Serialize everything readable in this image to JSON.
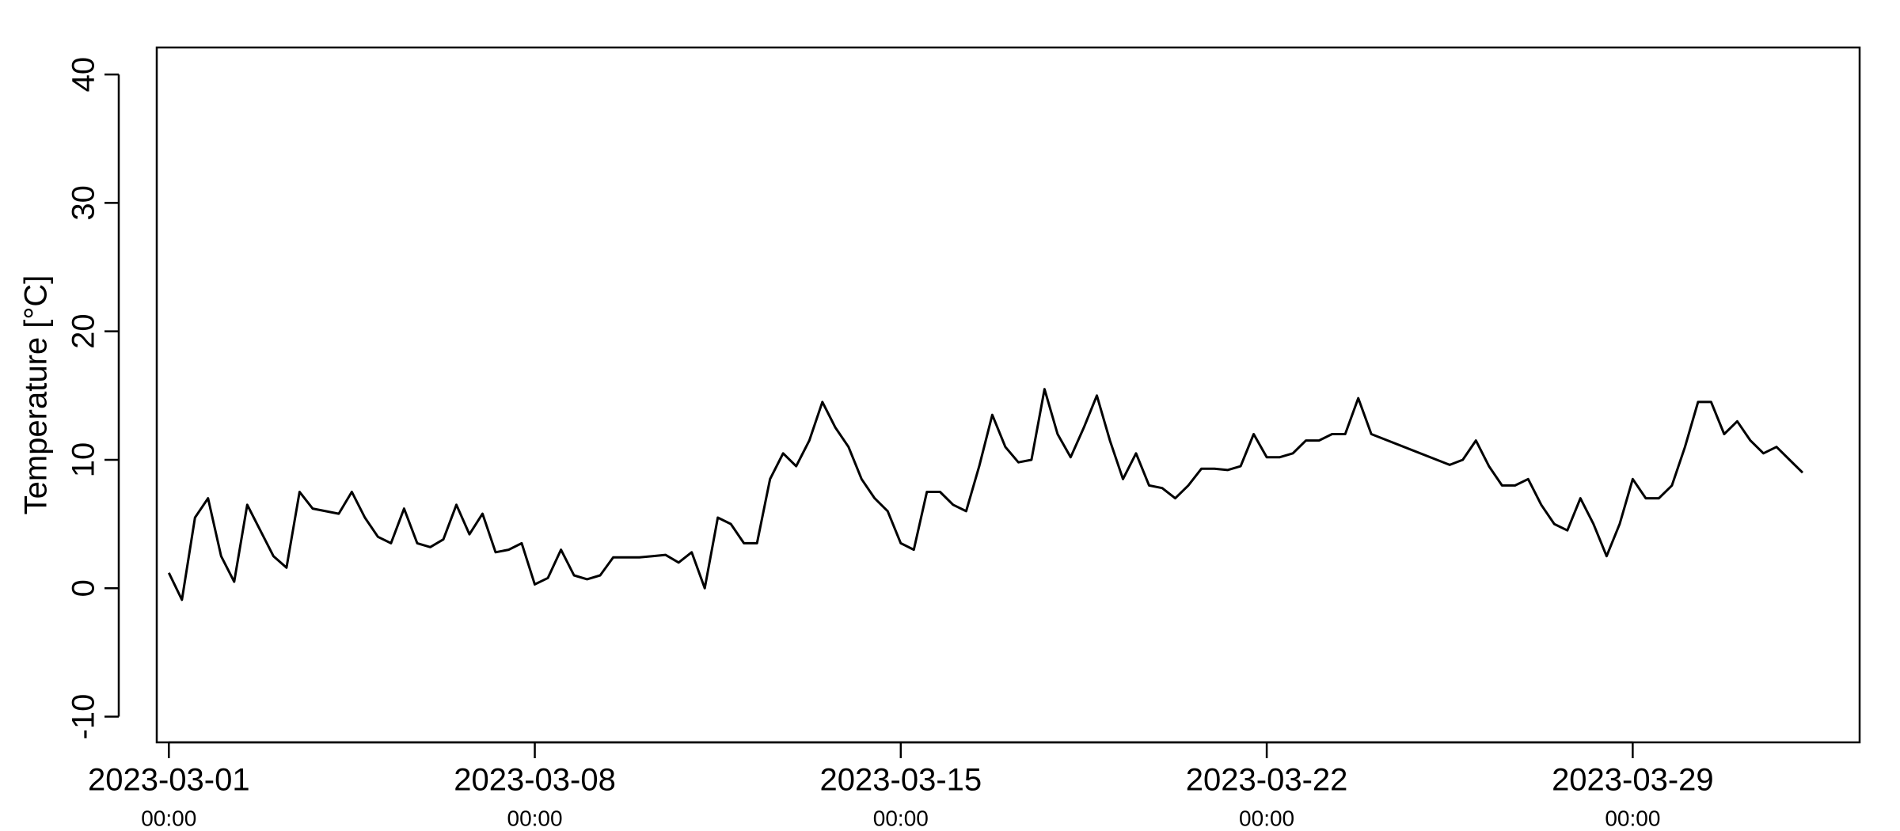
{
  "chart_data": {
    "type": "line",
    "y_label": "Temperature [°C]",
    "xlim": [
      "2023-02-28 18:27",
      "2023-04-02 08:10"
    ],
    "ylim": [
      -12,
      42.1
    ],
    "yticks": [
      -10,
      0,
      10,
      20,
      30,
      40
    ],
    "xticks": [
      {
        "value": "2023-03-01 00:00",
        "label": "2023-03-01",
        "time": "00:00"
      },
      {
        "value": "2023-03-08 00:00",
        "label": "2023-03-08",
        "time": "00:00"
      },
      {
        "value": "2023-03-15 00:00",
        "label": "2023-03-15",
        "time": "00:00"
      },
      {
        "value": "2023-03-22 00:00",
        "label": "2023-03-22",
        "time": "00:00"
      },
      {
        "value": "2023-03-29 00:00",
        "label": "2023-03-29",
        "time": "00:00"
      }
    ],
    "series": [
      {
        "color": "#000000",
        "x": [
          "2023-03-01 00:00",
          "2023-03-01 06:00",
          "2023-03-01 12:00",
          "2023-03-01 18:00",
          "2023-03-02 00:00",
          "2023-03-02 06:00",
          "2023-03-02 12:00",
          "2023-03-02 18:00",
          "2023-03-03 00:00",
          "2023-03-03 06:00",
          "2023-03-03 12:00",
          "2023-03-03 18:00",
          "2023-03-04 00:00",
          "2023-03-04 06:00",
          "2023-03-04 12:00",
          "2023-03-04 18:00",
          "2023-03-05 00:00",
          "2023-03-05 06:00",
          "2023-03-05 12:00",
          "2023-03-05 18:00",
          "2023-03-06 00:00",
          "2023-03-06 06:00",
          "2023-03-06 12:00",
          "2023-03-06 18:00",
          "2023-03-07 00:00",
          "2023-03-07 06:00",
          "2023-03-07 12:00",
          "2023-03-07 18:00",
          "2023-03-08 00:00",
          "2023-03-08 06:00",
          "2023-03-08 12:00",
          "2023-03-08 18:00",
          "2023-03-09 00:00",
          "2023-03-09 06:00",
          "2023-03-09 12:00",
          "2023-03-09 18:00",
          "2023-03-10 00:00",
          "2023-03-10 06:00",
          "2023-03-10 12:00",
          "2023-03-10 18:00",
          "2023-03-11 00:00",
          "2023-03-11 06:00",
          "2023-03-11 12:00",
          "2023-03-11 18:00",
          "2023-03-12 00:00",
          "2023-03-12 06:00",
          "2023-03-12 12:00",
          "2023-03-12 18:00",
          "2023-03-13 00:00",
          "2023-03-13 06:00",
          "2023-03-13 12:00",
          "2023-03-13 18:00",
          "2023-03-14 00:00",
          "2023-03-14 06:00",
          "2023-03-14 12:00",
          "2023-03-14 18:00",
          "2023-03-15 00:00",
          "2023-03-15 06:00",
          "2023-03-15 12:00",
          "2023-03-15 18:00",
          "2023-03-16 00:00",
          "2023-03-16 06:00",
          "2023-03-16 12:00",
          "2023-03-16 18:00",
          "2023-03-17 00:00",
          "2023-03-17 06:00",
          "2023-03-17 12:00",
          "2023-03-17 18:00",
          "2023-03-18 00:00",
          "2023-03-18 06:00",
          "2023-03-18 12:00",
          "2023-03-18 18:00",
          "2023-03-19 00:00",
          "2023-03-19 06:00",
          "2023-03-19 12:00",
          "2023-03-19 18:00",
          "2023-03-20 00:00",
          "2023-03-20 06:00",
          "2023-03-20 12:00",
          "2023-03-20 18:00",
          "2023-03-21 00:00",
          "2023-03-21 06:00",
          "2023-03-21 12:00",
          "2023-03-21 18:00",
          "2023-03-22 00:00",
          "2023-03-22 06:00",
          "2023-03-22 12:00",
          "2023-03-22 18:00",
          "2023-03-23 00:00",
          "2023-03-23 06:00",
          "2023-03-23 12:00",
          "2023-03-23 18:00",
          "2023-03-24 00:00",
          "2023-03-25 12:00",
          "2023-03-25 18:00",
          "2023-03-26 00:00",
          "2023-03-26 06:00",
          "2023-03-26 12:00",
          "2023-03-26 18:00",
          "2023-03-27 00:00",
          "2023-03-27 06:00",
          "2023-03-27 12:00",
          "2023-03-27 18:00",
          "2023-03-28 00:00",
          "2023-03-28 06:00",
          "2023-03-28 12:00",
          "2023-03-28 18:00",
          "2023-03-29 00:00",
          "2023-03-29 06:00",
          "2023-03-29 12:00",
          "2023-03-29 18:00",
          "2023-03-30 00:00",
          "2023-03-30 06:00",
          "2023-03-30 12:00",
          "2023-03-30 18:00",
          "2023-03-31 00:00",
          "2023-03-31 06:00",
          "2023-03-31 12:00",
          "2023-03-31 18:00",
          "2023-04-01 00:00",
          "2023-04-01 06:00"
        ],
        "values": [
          1.2,
          -0.9,
          5.5,
          7.0,
          2.5,
          0.5,
          6.5,
          4.5,
          2.5,
          1.6,
          7.5,
          6.2,
          6.0,
          5.8,
          7.5,
          5.5,
          4.0,
          3.5,
          6.2,
          3.5,
          3.2,
          3.8,
          6.5,
          4.2,
          5.8,
          2.8,
          3.0,
          3.5,
          0.3,
          0.8,
          3.0,
          1.0,
          0.7,
          1.0,
          2.4,
          2.4,
          2.4,
          2.5,
          2.6,
          2.0,
          2.8,
          0.0,
          5.5,
          5.0,
          3.5,
          3.5,
          8.5,
          10.5,
          9.5,
          11.5,
          14.5,
          12.5,
          11.0,
          8.5,
          7.0,
          6.0,
          3.5,
          3.0,
          7.5,
          7.5,
          6.5,
          6.0,
          9.5,
          13.5,
          11.0,
          9.8,
          10.0,
          15.5,
          12.0,
          10.2,
          12.5,
          15.0,
          11.5,
          8.5,
          10.5,
          8.0,
          7.8,
          7.0,
          8.0,
          9.3,
          9.3,
          9.2,
          9.5,
          12.0,
          10.2,
          10.2,
          10.5,
          11.5,
          11.5,
          12.0,
          12.0,
          14.8,
          12.0,
          9.6,
          10.0,
          11.5,
          9.5,
          8.0,
          8.0,
          8.5,
          6.5,
          5.0,
          4.5,
          7.0,
          5.0,
          2.5,
          5.0,
          8.5,
          7.0,
          7.0,
          8.0,
          11.0,
          14.5,
          14.5,
          12.0,
          13.0,
          11.5,
          10.5,
          11.0,
          10.0,
          9.0
        ]
      }
    ]
  }
}
